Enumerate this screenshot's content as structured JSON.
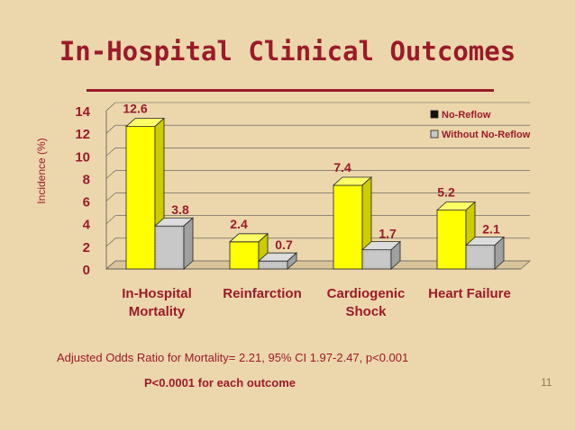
{
  "slide": {
    "title": "In-Hospital Clinical Outcomes",
    "footnote": "Adjusted Odds Ratio for  Mortality= 2.21, 95% CI 1.97-2.47, p<0.001",
    "significance": "P<0.0001 for each outcome",
    "page_number": "11"
  },
  "colors": {
    "title": "#9b1a2a",
    "series1": "#ffff00",
    "series2": "#c8c8c8",
    "labels": "#9b1a2a"
  },
  "chart_data": {
    "type": "bar",
    "title": "",
    "ylabel": "Incidence (%)",
    "xlabel": "",
    "ylim": [
      0,
      14
    ],
    "yticks": [
      0,
      2,
      4,
      6,
      8,
      10,
      12,
      14
    ],
    "categories": [
      [
        "In-Hospital",
        "Mortality"
      ],
      [
        "Reinfarction"
      ],
      [
        "Cardiogenic",
        "Shock"
      ],
      [
        "Heart Failure"
      ]
    ],
    "series": [
      {
        "name": "No-Reflow",
        "values": [
          12.6,
          2.4,
          7.4,
          5.2
        ]
      },
      {
        "name": "Without No-Reflow",
        "values": [
          3.8,
          0.7,
          1.7,
          2.1
        ]
      }
    ],
    "data_labels": [
      [
        "12.6",
        "2.4",
        "7.4",
        "5.2"
      ],
      [
        "3.8",
        "0.7",
        "1.7",
        "2.1"
      ]
    ],
    "legend": "top-right",
    "grid": true
  }
}
